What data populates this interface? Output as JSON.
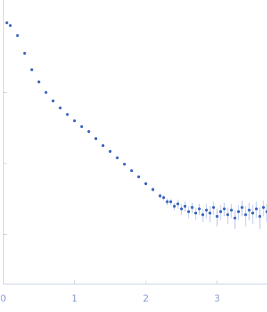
{
  "chart_data": {
    "type": "scatter",
    "x": [
      0.05,
      0.1,
      0.2,
      0.3,
      0.4,
      0.5,
      0.6,
      0.7,
      0.8,
      0.9,
      1.0,
      1.1,
      1.2,
      1.3,
      1.4,
      1.5,
      1.6,
      1.7,
      1.8,
      1.9,
      2.0,
      2.1,
      2.2,
      2.25,
      2.3,
      2.35,
      2.4,
      2.45,
      2.5,
      2.55,
      2.6,
      2.65,
      2.7,
      2.75,
      2.8,
      2.85,
      2.9,
      2.95,
      3.0,
      3.05,
      3.1,
      3.15,
      3.2,
      3.25,
      3.3,
      3.35,
      3.4,
      3.45,
      3.5,
      3.55,
      3.6,
      3.65,
      3.7
    ],
    "values": [
      0.955,
      0.871,
      0.631,
      0.355,
      0.209,
      0.141,
      0.1,
      0.0759,
      0.0603,
      0.049,
      0.0398,
      0.0331,
      0.0282,
      0.0224,
      0.0178,
      0.0148,
      0.012,
      0.0098,
      0.0079,
      0.0065,
      0.0052,
      0.0043,
      0.0035,
      0.0033,
      0.0029,
      0.0029,
      0.0025,
      0.0027,
      0.0023,
      0.0025,
      0.0021,
      0.0024,
      0.002,
      0.0023,
      0.0019,
      0.0022,
      0.002,
      0.0024,
      0.0018,
      0.0021,
      0.0023,
      0.0019,
      0.0022,
      0.0017,
      0.0021,
      0.0024,
      0.0019,
      0.0022,
      0.002,
      0.0023,
      0.0018,
      0.0024,
      0.0021
    ],
    "errors": [
      0.005,
      0.004,
      0.003,
      0.002,
      0.001,
      0.0007,
      0.0005,
      0.0004,
      0.0003,
      0.0003,
      0.0002,
      0.0002,
      0.0002,
      0.0002,
      0.0002,
      0.0002,
      0.0002,
      0.0002,
      0.0002,
      0.0002,
      0.0002,
      0.0003,
      0.0003,
      0.0003,
      0.0003,
      0.0003,
      0.0003,
      0.0004,
      0.0004,
      0.0004,
      0.0004,
      0.0004,
      0.0004,
      0.0004,
      0.0004,
      0.0005,
      0.0005,
      0.0005,
      0.0005,
      0.0005,
      0.0005,
      0.0005,
      0.0005,
      0.0005,
      0.0005,
      0.0006,
      0.0006,
      0.0006,
      0.0006,
      0.0006,
      0.0006,
      0.0006,
      0.0006
    ],
    "color": "#3b66c0",
    "error_color": "#a9bde6",
    "log_y": true,
    "xlim": [
      0,
      3.7
    ],
    "xticks": [
      0,
      1,
      2,
      3
    ],
    "ylim": [
      0.0002,
      2
    ],
    "yticks": [
      0.1,
      0.01,
      0.001
    ]
  }
}
